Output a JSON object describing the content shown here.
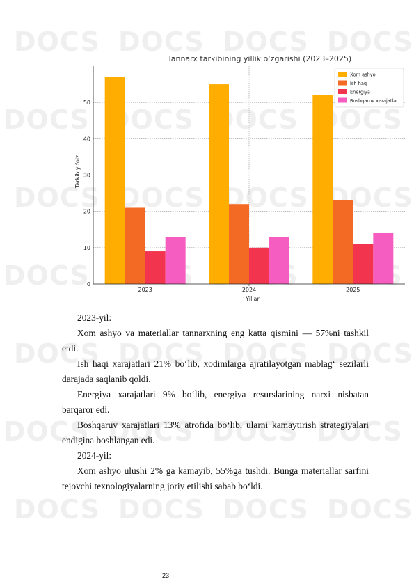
{
  "watermark": {
    "text": "DOCS"
  },
  "chart_data": {
    "type": "bar",
    "title": "Tannarx tarkibining yillik o‘zgarishi (2023–2025)",
    "xlabel": "Yillar",
    "ylabel": "Tarkibiy foiz",
    "categories": [
      "2023",
      "2024",
      "2025"
    ],
    "ylim": [
      0,
      60
    ],
    "yticks": [
      0,
      10,
      20,
      30,
      40,
      50
    ],
    "grid": true,
    "legend_position": "top-right",
    "series": [
      {
        "name": "Xom ashyo",
        "color": "#ffad00",
        "values": [
          57,
          55,
          52
        ]
      },
      {
        "name": "Ish haq",
        "color": "#f26a23",
        "values": [
          21,
          22,
          23
        ]
      },
      {
        "name": "Energiya",
        "color": "#f2344e",
        "values": [
          9,
          10,
          11
        ]
      },
      {
        "name": "Boshqaruv xarajatlar",
        "color": "#f55ec0",
        "values": [
          13,
          13,
          14
        ]
      }
    ]
  },
  "paragraphs": [
    {
      "text": "2023-yil:",
      "head": true
    },
    {
      "text": "Xom ashyo va materiallar tannarxning eng katta qismini — 57%ni tashkil etdi."
    },
    {
      "text": "Ish haqi xarajatlari 21% bo‘lib, xodimlarga ajratilayotgan mablag‘ sezilarli darajada saqlanib qoldi."
    },
    {
      "text": "Energiya xarajatlari 9% bo‘lib, energiya resurslarining narxi nisbatan barqaror edi."
    },
    {
      "text": "Boshqaruv xarajatlari 13% atrofida bo‘lib, ularni kamaytirish strategiyalari endigina boshlangan edi."
    },
    {
      "text": "2024-yil:",
      "head": true
    },
    {
      "text": "Xom ashyo ulushi 2% ga kamayib, 55%ga tushdi. Bunga materiallar sarfini tejovchi texnologiyalarning joriy etilishi sabab bo‘ldi."
    }
  ],
  "page_number": "23"
}
